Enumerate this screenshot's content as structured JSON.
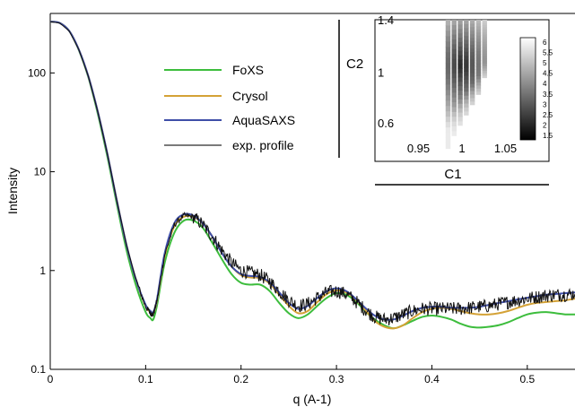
{
  "chart_data": [
    {
      "type": "line",
      "title": "",
      "xlabel": "q (A-1)",
      "ylabel": "Intensity",
      "xlim": [
        0,
        0.55
      ],
      "ylim": [
        0.1,
        400
      ],
      "yscale": "log",
      "x_ticks": [
        "0",
        "0.1",
        "0.2",
        "0.3",
        "0.4",
        "0.5"
      ],
      "x_tick_values": [
        0,
        0.1,
        0.2,
        0.3,
        0.4,
        0.5
      ],
      "y_ticks": [
        "0.1",
        "1",
        "10",
        "100"
      ],
      "y_tick_values": [
        0.1,
        1,
        10,
        100
      ],
      "grid": false,
      "legend": "upper-left",
      "series": [
        {
          "name": "FoXS",
          "color": "#3dbd3d",
          "x": [
            0,
            0.01,
            0.02,
            0.03,
            0.04,
            0.05,
            0.06,
            0.07,
            0.08,
            0.09,
            0.1,
            0.105,
            0.108,
            0.112,
            0.12,
            0.13,
            0.14,
            0.15,
            0.16,
            0.17,
            0.18,
            0.19,
            0.2,
            0.21,
            0.22,
            0.23,
            0.24,
            0.25,
            0.26,
            0.27,
            0.28,
            0.29,
            0.3,
            0.31,
            0.32,
            0.33,
            0.34,
            0.35,
            0.36,
            0.37,
            0.38,
            0.39,
            0.4,
            0.41,
            0.42,
            0.43,
            0.44,
            0.45,
            0.46,
            0.47,
            0.48,
            0.49,
            0.5,
            0.51,
            0.52,
            0.53,
            0.54,
            0.55
          ],
          "y": [
            330,
            320,
            265,
            170,
            90,
            38,
            14,
            4.6,
            1.6,
            0.7,
            0.38,
            0.33,
            0.32,
            0.45,
            1.2,
            2.4,
            3.2,
            3.2,
            2.7,
            1.9,
            1.3,
            0.92,
            0.75,
            0.72,
            0.72,
            0.62,
            0.47,
            0.37,
            0.33,
            0.36,
            0.44,
            0.53,
            0.59,
            0.57,
            0.49,
            0.39,
            0.32,
            0.28,
            0.26,
            0.28,
            0.31,
            0.34,
            0.35,
            0.34,
            0.32,
            0.29,
            0.27,
            0.265,
            0.27,
            0.28,
            0.3,
            0.33,
            0.36,
            0.375,
            0.38,
            0.37,
            0.36,
            0.36
          ]
        },
        {
          "name": "Crysol",
          "color": "#d4a236",
          "x": [
            0,
            0.01,
            0.02,
            0.03,
            0.04,
            0.05,
            0.06,
            0.07,
            0.08,
            0.09,
            0.1,
            0.105,
            0.108,
            0.112,
            0.12,
            0.13,
            0.14,
            0.15,
            0.16,
            0.17,
            0.18,
            0.19,
            0.2,
            0.21,
            0.22,
            0.23,
            0.24,
            0.25,
            0.26,
            0.27,
            0.28,
            0.29,
            0.3,
            0.31,
            0.32,
            0.33,
            0.34,
            0.35,
            0.36,
            0.37,
            0.38,
            0.39,
            0.4,
            0.41,
            0.42,
            0.43,
            0.44,
            0.45,
            0.46,
            0.47,
            0.48,
            0.49,
            0.5,
            0.51,
            0.52,
            0.53,
            0.54,
            0.55
          ],
          "y": [
            330,
            320,
            265,
            172,
            92,
            40,
            15,
            5.0,
            1.8,
            0.8,
            0.44,
            0.38,
            0.37,
            0.5,
            1.4,
            2.8,
            3.5,
            3.5,
            3.0,
            2.2,
            1.5,
            1.1,
            0.9,
            0.85,
            0.84,
            0.74,
            0.57,
            0.44,
            0.37,
            0.39,
            0.48,
            0.58,
            0.63,
            0.6,
            0.51,
            0.4,
            0.31,
            0.27,
            0.26,
            0.28,
            0.33,
            0.38,
            0.41,
            0.42,
            0.41,
            0.39,
            0.37,
            0.36,
            0.36,
            0.37,
            0.39,
            0.42,
            0.45,
            0.47,
            0.48,
            0.49,
            0.5,
            0.52
          ]
        },
        {
          "name": "AquaSAXS",
          "color": "#3f4ea8",
          "x": [
            0,
            0.01,
            0.02,
            0.03,
            0.04,
            0.05,
            0.06,
            0.07,
            0.08,
            0.09,
            0.1,
            0.105,
            0.108,
            0.112,
            0.12,
            0.13,
            0.14,
            0.15,
            0.16,
            0.17,
            0.18,
            0.19,
            0.2,
            0.21,
            0.22,
            0.23,
            0.24,
            0.25,
            0.26,
            0.27,
            0.28,
            0.29,
            0.3,
            0.31,
            0.32,
            0.33,
            0.34,
            0.35,
            0.36,
            0.37,
            0.38,
            0.39,
            0.4,
            0.41,
            0.42,
            0.43,
            0.44,
            0.45,
            0.46,
            0.47,
            0.48,
            0.49,
            0.5,
            0.51,
            0.52,
            0.53,
            0.54,
            0.55
          ],
          "y": [
            330,
            320,
            265,
            172,
            92,
            40,
            15,
            5.0,
            1.8,
            0.8,
            0.45,
            0.39,
            0.38,
            0.52,
            1.5,
            3.0,
            3.7,
            3.6,
            3.0,
            2.2,
            1.5,
            1.1,
            0.92,
            0.88,
            0.86,
            0.76,
            0.6,
            0.47,
            0.41,
            0.44,
            0.53,
            0.62,
            0.66,
            0.62,
            0.52,
            0.42,
            0.35,
            0.32,
            0.32,
            0.35,
            0.39,
            0.42,
            0.43,
            0.43,
            0.42,
            0.42,
            0.42,
            0.43,
            0.45,
            0.47,
            0.49,
            0.51,
            0.53,
            0.55,
            0.57,
            0.58,
            0.59,
            0.6
          ]
        },
        {
          "name": "exp. profile",
          "color": "#7a7a7a",
          "x": [
            0,
            0.01,
            0.02,
            0.03,
            0.04,
            0.05,
            0.06,
            0.07,
            0.08,
            0.09,
            0.1,
            0.105,
            0.108,
            0.112,
            0.12,
            0.13,
            0.14,
            0.15,
            0.16,
            0.17,
            0.18,
            0.19,
            0.2,
            0.21,
            0.22,
            0.23,
            0.24,
            0.25,
            0.26,
            0.27,
            0.28,
            0.29,
            0.3,
            0.31,
            0.32,
            0.33,
            0.34,
            0.35,
            0.36,
            0.37,
            0.38,
            0.39,
            0.4,
            0.41,
            0.42,
            0.43,
            0.44,
            0.45,
            0.46,
            0.47,
            0.48,
            0.49,
            0.5,
            0.51,
            0.52,
            0.53,
            0.54,
            0.55
          ],
          "y": [
            330,
            320,
            265,
            172,
            92,
            40,
            15,
            5.0,
            1.8,
            0.8,
            0.43,
            0.37,
            0.36,
            0.5,
            1.45,
            2.9,
            3.6,
            3.5,
            2.9,
            2.2,
            1.6,
            1.2,
            1.0,
            0.95,
            0.9,
            0.78,
            0.62,
            0.5,
            0.44,
            0.46,
            0.53,
            0.6,
            0.62,
            0.58,
            0.49,
            0.4,
            0.34,
            0.32,
            0.33,
            0.36,
            0.39,
            0.41,
            0.41,
            0.41,
            0.41,
            0.41,
            0.42,
            0.43,
            0.44,
            0.46,
            0.48,
            0.5,
            0.52,
            0.54,
            0.56,
            0.57,
            0.57,
            0.58
          ]
        }
      ]
    },
    {
      "type": "heatmap",
      "title": "",
      "xlabel": "C1",
      "ylabel": "C2",
      "x_ticks": [
        "0.95",
        "1",
        "1.05"
      ],
      "x_tick_values": [
        0.95,
        1,
        1.05
      ],
      "y_ticks": [
        "1.4",
        "1",
        "0.6"
      ],
      "y_tick_values": [
        1.4,
        1,
        0.6
      ],
      "xlim": [
        0.9,
        1.1
      ],
      "ylim": [
        0.3,
        1.4
      ],
      "x_columns": [
        0.984,
        0.991,
        0.998,
        1.005,
        1.012,
        1.019,
        1.026
      ],
      "column_ranges": [
        [
          0.4,
          1.4
        ],
        [
          0.5,
          1.4
        ],
        [
          0.58,
          1.4
        ],
        [
          0.66,
          1.4
        ],
        [
          0.74,
          1.4
        ],
        [
          0.82,
          1.4
        ],
        [
          0.95,
          1.4
        ]
      ],
      "min_value_location": [
        1.0,
        1.05
      ],
      "colorbar_ticks": [
        "6",
        "5.5",
        "5",
        "4.5",
        "4",
        "3.5",
        "3",
        "2.5",
        "2",
        "1.5"
      ],
      "colorbar_range": [
        1.5,
        6
      ],
      "colormap": "gray (low = black, high = white)"
    }
  ]
}
